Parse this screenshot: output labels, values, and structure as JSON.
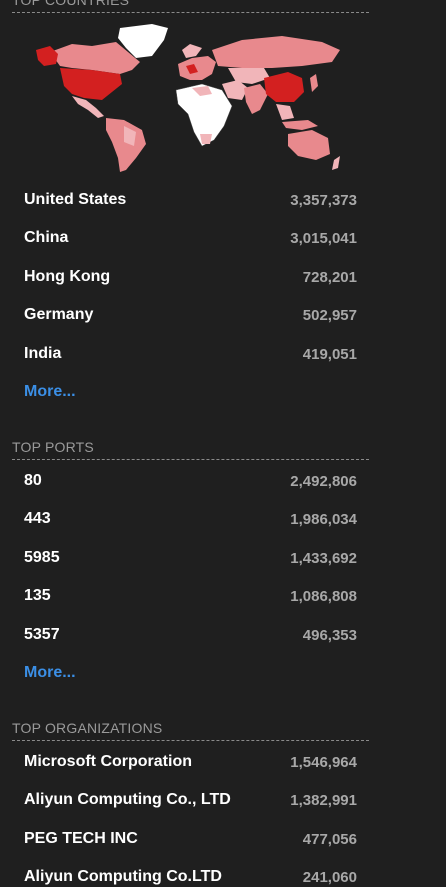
{
  "countries": {
    "title": "TOP COUNTRIES",
    "rows": [
      {
        "label": "United States",
        "value": "3,357,373"
      },
      {
        "label": "China",
        "value": "3,015,041"
      },
      {
        "label": "Hong Kong",
        "value": "728,201"
      },
      {
        "label": "Germany",
        "value": "502,957"
      },
      {
        "label": "India",
        "value": "419,051"
      }
    ],
    "more": "More..."
  },
  "ports": {
    "title": "TOP PORTS",
    "rows": [
      {
        "label": "80",
        "value": "2,492,806"
      },
      {
        "label": "443",
        "value": "1,986,034"
      },
      {
        "label": "5985",
        "value": "1,433,692"
      },
      {
        "label": "135",
        "value": "1,086,808"
      },
      {
        "label": "5357",
        "value": "496,353"
      }
    ],
    "more": "More..."
  },
  "organizations": {
    "title": "TOP ORGANIZATIONS",
    "rows": [
      {
        "label": "Microsoft Corporation",
        "value": "1,546,964"
      },
      {
        "label": "Aliyun Computing Co., LTD",
        "value": "1,382,991"
      },
      {
        "label": "PEG TECH INC",
        "value": "477,056"
      },
      {
        "label": "Aliyun Computing Co.LTD",
        "value": "241,060"
      }
    ]
  },
  "colors": {
    "background": "#1f1f1f",
    "link": "#3b8fe6",
    "map_high": "#d32020",
    "map_mid": "#e8898d",
    "map_low": "#f1b5b9",
    "map_none": "#ffffff"
  },
  "icons": [
    "world-map-icon"
  ]
}
